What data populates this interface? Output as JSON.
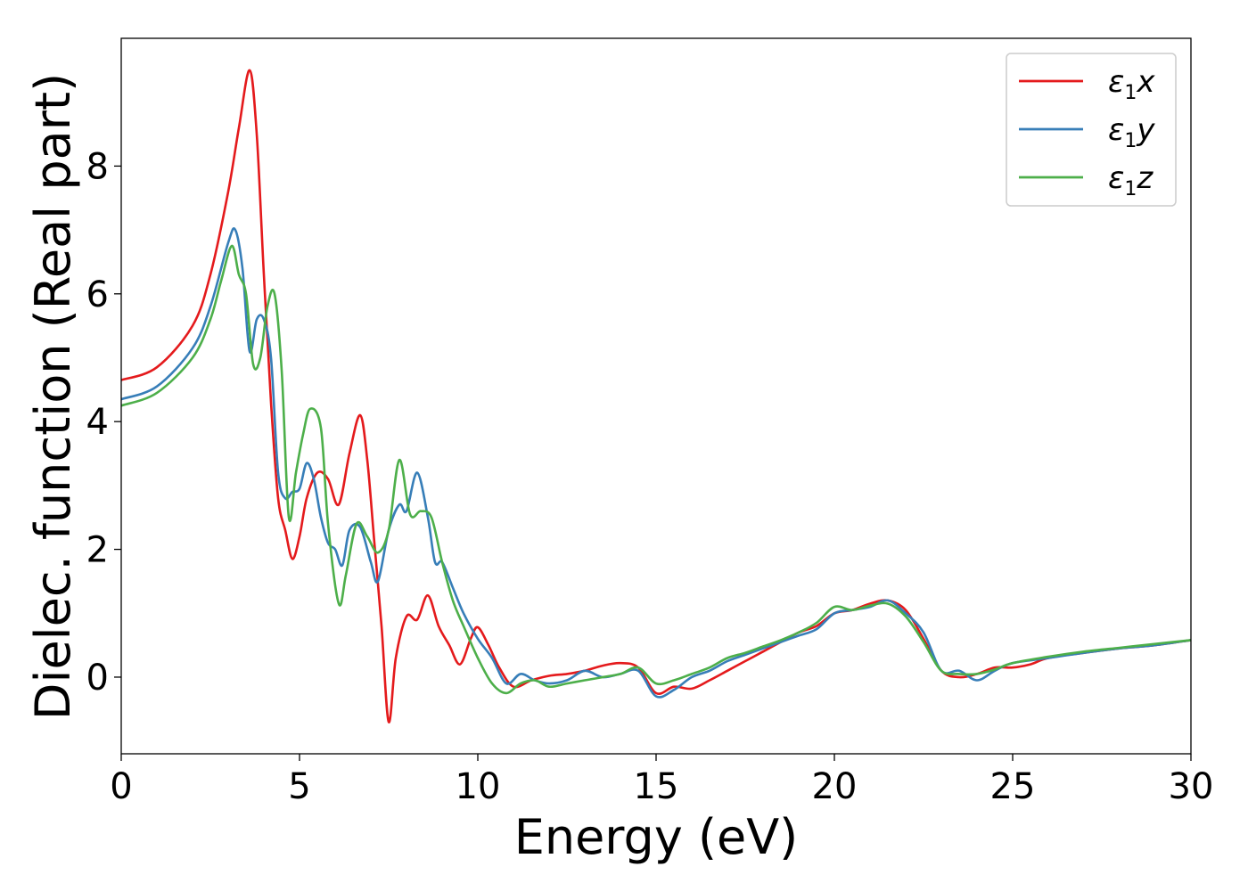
{
  "chart_data": {
    "type": "line",
    "title": "",
    "xlabel": "Energy (eV)",
    "ylabel": "Dielec. function (Real part)",
    "xlim": [
      0,
      30
    ],
    "ylim": [
      -1.2,
      10.0
    ],
    "xticks": [
      0,
      5,
      10,
      15,
      20,
      25,
      30
    ],
    "yticks": [
      0,
      2,
      4,
      6,
      8
    ],
    "grid": false,
    "legend_position": "top-right",
    "series": [
      {
        "name": "ε1x",
        "legend": {
          "base": "ε",
          "sub": "1",
          "var": "x"
        },
        "color": "#e41a1c",
        "x": [
          0,
          1,
          2,
          2.5,
          3,
          3.3,
          3.6,
          3.8,
          4.0,
          4.2,
          4.4,
          4.6,
          4.8,
          5.0,
          5.2,
          5.5,
          5.8,
          6.1,
          6.4,
          6.7,
          6.9,
          7.1,
          7.3,
          7.5,
          7.7,
          8.0,
          8.3,
          8.6,
          8.9,
          9.2,
          9.5,
          9.8,
          10.0,
          10.3,
          10.6,
          11.0,
          11.5,
          12.0,
          12.5,
          13.0,
          13.5,
          14.0,
          14.5,
          15.0,
          15.5,
          16.0,
          16.5,
          17.0,
          17.5,
          18.0,
          18.5,
          19.0,
          19.5,
          20.0,
          20.5,
          21.0,
          21.5,
          22.0,
          22.5,
          23.0,
          23.5,
          24.0,
          24.5,
          25.0,
          25.5,
          26.0,
          27.0,
          28.0,
          29.0,
          30.0
        ],
        "y": [
          4.65,
          4.85,
          5.5,
          6.3,
          7.6,
          8.6,
          9.5,
          8.5,
          6.3,
          4.3,
          2.8,
          2.3,
          1.85,
          2.2,
          2.8,
          3.2,
          3.1,
          2.7,
          3.5,
          4.1,
          3.4,
          2.1,
          0.8,
          -0.7,
          0.3,
          0.95,
          0.9,
          1.28,
          0.8,
          0.5,
          0.2,
          0.6,
          0.78,
          0.5,
          0.15,
          -0.15,
          -0.05,
          0.02,
          0.05,
          0.1,
          0.18,
          0.22,
          0.15,
          -0.25,
          -0.15,
          -0.18,
          -0.05,
          0.1,
          0.25,
          0.4,
          0.55,
          0.7,
          0.8,
          1.0,
          1.05,
          1.15,
          1.2,
          1.05,
          0.6,
          0.1,
          0.0,
          0.05,
          0.15,
          0.15,
          0.2,
          0.3,
          0.38,
          0.45,
          0.5,
          0.58
        ]
      },
      {
        "name": "ε1y",
        "legend": {
          "base": "ε",
          "sub": "1",
          "var": "y"
        },
        "color": "#377eb8",
        "x": [
          0,
          1,
          2,
          2.5,
          3,
          3.2,
          3.4,
          3.6,
          3.8,
          4.0,
          4.2,
          4.4,
          4.6,
          4.8,
          5.0,
          5.2,
          5.4,
          5.6,
          5.8,
          6.0,
          6.2,
          6.4,
          6.7,
          7.0,
          7.2,
          7.5,
          7.8,
          8.0,
          8.3,
          8.6,
          8.8,
          9.0,
          9.3,
          9.6,
          10.0,
          10.4,
          10.8,
          11.2,
          11.6,
          12.0,
          12.5,
          13.0,
          13.5,
          14.0,
          14.5,
          15.0,
          15.5,
          16.0,
          16.5,
          17.0,
          17.5,
          18.0,
          18.5,
          19.0,
          19.5,
          20.0,
          20.5,
          21.0,
          21.5,
          22.0,
          22.5,
          23.0,
          23.5,
          24.0,
          24.5,
          25.0,
          26.0,
          27.0,
          28.0,
          29.0,
          30.0
        ],
        "y": [
          4.35,
          4.55,
          5.15,
          5.8,
          6.8,
          7.0,
          6.4,
          5.1,
          5.6,
          5.6,
          5.0,
          3.2,
          2.8,
          2.9,
          2.95,
          3.35,
          3.1,
          2.5,
          2.1,
          2.0,
          1.75,
          2.3,
          2.35,
          1.8,
          1.5,
          2.3,
          2.7,
          2.6,
          3.2,
          2.5,
          1.8,
          1.8,
          1.4,
          1.0,
          0.6,
          0.3,
          -0.1,
          0.05,
          -0.05,
          -0.1,
          -0.05,
          0.1,
          0.0,
          0.05,
          0.1,
          -0.3,
          -0.2,
          0.0,
          0.1,
          0.25,
          0.35,
          0.45,
          0.55,
          0.65,
          0.75,
          1.0,
          1.05,
          1.1,
          1.2,
          1.0,
          0.7,
          0.1,
          0.1,
          -0.05,
          0.1,
          0.22,
          0.3,
          0.38,
          0.45,
          0.5,
          0.58
        ]
      },
      {
        "name": "ε1z",
        "legend": {
          "base": "ε",
          "sub": "1",
          "var": "z"
        },
        "color": "#4daf4a",
        "x": [
          0,
          1,
          2,
          2.5,
          2.8,
          3.1,
          3.3,
          3.5,
          3.7,
          3.9,
          4.1,
          4.3,
          4.5,
          4.7,
          4.9,
          5.1,
          5.3,
          5.6,
          5.8,
          6.1,
          6.3,
          6.6,
          6.9,
          7.2,
          7.5,
          7.8,
          8.1,
          8.4,
          8.7,
          9.0,
          9.3,
          9.6,
          10.0,
          10.4,
          10.8,
          11.2,
          11.6,
          12.0,
          12.5,
          13.0,
          13.5,
          14.0,
          14.5,
          15.0,
          15.5,
          16.0,
          16.5,
          17.0,
          17.5,
          18.0,
          18.5,
          19.0,
          19.5,
          20.0,
          20.5,
          21.0,
          21.5,
          22.0,
          22.5,
          23.0,
          23.5,
          24.0,
          24.5,
          25.0,
          26.0,
          27.0,
          28.0,
          29.0,
          30.0
        ],
        "y": [
          4.25,
          4.45,
          5.0,
          5.6,
          6.2,
          6.75,
          6.3,
          6.0,
          4.9,
          5.0,
          5.8,
          6.0,
          4.8,
          2.5,
          3.2,
          3.8,
          4.2,
          3.9,
          2.4,
          1.15,
          1.6,
          2.4,
          2.2,
          1.95,
          2.3,
          3.4,
          2.55,
          2.6,
          2.5,
          1.8,
          1.2,
          0.8,
          0.3,
          -0.1,
          -0.25,
          -0.1,
          -0.05,
          -0.15,
          -0.1,
          -0.05,
          0.0,
          0.05,
          0.15,
          -0.1,
          -0.05,
          0.05,
          0.15,
          0.3,
          0.38,
          0.48,
          0.58,
          0.7,
          0.85,
          1.1,
          1.05,
          1.12,
          1.15,
          0.95,
          0.55,
          0.1,
          0.05,
          0.05,
          0.12,
          0.22,
          0.32,
          0.4,
          0.46,
          0.52,
          0.58
        ]
      }
    ]
  }
}
